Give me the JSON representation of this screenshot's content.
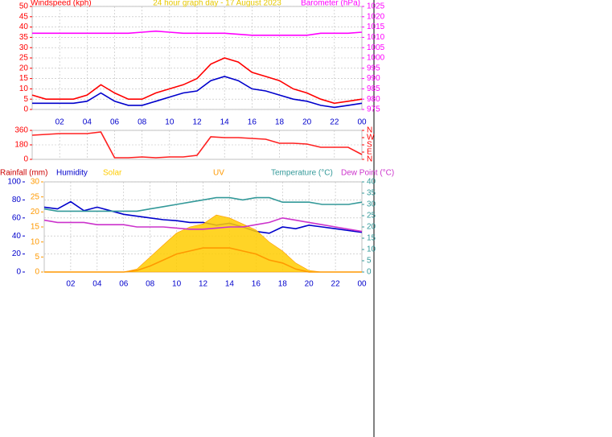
{
  "chart_data": [
    {
      "type": "line",
      "title": "24 hour graph day - 17 August 2023",
      "title_color": "#e6c800",
      "ylabel": "Windspeed (kph)",
      "y2label": "Barometer (hPa)",
      "ycolor": "#ff0000",
      "y2color": "#ff00ff",
      "xcolor": "#0000cc",
      "x": [
        0,
        1,
        2,
        3,
        4,
        5,
        6,
        7,
        8,
        9,
        10,
        11,
        12,
        13,
        14,
        15,
        16,
        17,
        18,
        19,
        20,
        21,
        22,
        23,
        24
      ],
      "xlim": [
        0,
        24
      ],
      "xticks": [
        {
          "value": 2,
          "label": "02"
        },
        {
          "value": 4,
          "label": "04"
        },
        {
          "value": 6,
          "label": "06"
        },
        {
          "value": 8,
          "label": "08"
        },
        10,
        12,
        14,
        16,
        18,
        20,
        22,
        {
          "value": 24,
          "label": "00"
        }
      ],
      "ylim": [
        0,
        50
      ],
      "yticks": [
        0,
        5,
        10,
        15,
        20,
        25,
        30,
        35,
        40,
        45,
        50
      ],
      "y2lim": [
        975,
        1025
      ],
      "y2ticks": [
        975,
        980,
        985,
        990,
        995,
        1000,
        1005,
        1010,
        1015,
        1020,
        1025
      ],
      "grid": true,
      "series": [
        {
          "color": "#ff0000",
          "values": [
            7,
            5,
            5,
            5,
            7,
            12,
            8,
            5,
            5,
            8,
            10,
            12,
            15,
            22,
            25,
            23,
            18,
            16,
            14,
            10,
            8,
            5,
            3,
            4,
            5
          ]
        },
        {
          "color": "#0000cc",
          "values": [
            3,
            3,
            3,
            3,
            4,
            8,
            4,
            2,
            2,
            4,
            6,
            8,
            9,
            14,
            16,
            14,
            10,
            9,
            7,
            5,
            4,
            2,
            1,
            2,
            3
          ]
        },
        {
          "color": "#ff00ff",
          "axis": "y2",
          "values": [
            1012,
            1012,
            1012,
            1012,
            1012,
            1012,
            1012,
            1012,
            1012.5,
            1013,
            1012.5,
            1012,
            1012,
            1012,
            1012,
            1011.5,
            1011,
            1011,
            1011,
            1011,
            1011,
            1012,
            1012,
            1012,
            1012.5
          ]
        }
      ]
    },
    {
      "type": "line",
      "ycolor": "#ff0000",
      "y2color": "#ff0000",
      "x": [
        0,
        1,
        2,
        3,
        4,
        5,
        6,
        7,
        8,
        9,
        10,
        11,
        12,
        13,
        14,
        15,
        16,
        17,
        18,
        19,
        20,
        21,
        22,
        23,
        24
      ],
      "xlim": [
        0,
        24
      ],
      "xticks": [
        {
          "value": 2,
          "label": "02"
        },
        {
          "value": 4,
          "label": "04"
        },
        {
          "value": 6,
          "label": "06"
        },
        {
          "value": 8,
          "label": "08"
        },
        10,
        12,
        14,
        16,
        18,
        20,
        22,
        {
          "value": 24,
          "label": "00"
        }
      ],
      "ylim": [
        0,
        360
      ],
      "yticks": [
        0,
        180,
        360
      ],
      "y2lim": [
        0,
        360
      ],
      "y2ticks": [
        {
          "value": 0,
          "label": "N"
        },
        {
          "value": 90,
          "label": "E"
        },
        {
          "value": 180,
          "label": "S"
        },
        {
          "value": 270,
          "label": "W"
        },
        {
          "value": 360,
          "label": "N"
        }
      ],
      "grid": true,
      "series": [
        {
          "color": "#ff2020",
          "values": [
            300,
            310,
            320,
            320,
            320,
            340,
            20,
            20,
            30,
            20,
            30,
            30,
            50,
            280,
            270,
            270,
            260,
            250,
            200,
            200,
            190,
            150,
            150,
            150,
            60
          ]
        }
      ]
    },
    {
      "type": "line",
      "rainfall_label": "Rainfall (mm)",
      "rainfall_color": "#cc0000",
      "ycolor": "#0000cc",
      "y2color": "#339999",
      "y3color": "#ff9900",
      "xcolor": "#0000cc",
      "x": [
        0,
        1,
        2,
        3,
        4,
        5,
        6,
        7,
        8,
        9,
        10,
        11,
        12,
        13,
        14,
        15,
        16,
        17,
        18,
        19,
        20,
        21,
        22,
        23,
        24
      ],
      "xlim": [
        0,
        24
      ],
      "xticks": [
        {
          "value": 2,
          "label": "02"
        },
        {
          "value": 4,
          "label": "04"
        },
        {
          "value": 6,
          "label": "06"
        },
        {
          "value": 8,
          "label": "08"
        },
        10,
        12,
        14,
        16,
        18,
        20,
        22,
        {
          "value": 24,
          "label": "00"
        }
      ],
      "ylim": [
        0,
        100
      ],
      "yticks": [
        0,
        20,
        40,
        60,
        80,
        100
      ],
      "y3lim": [
        0,
        30
      ],
      "y3ticks": [
        0,
        5,
        10,
        15,
        20,
        25,
        30
      ],
      "y2lim": [
        0,
        40
      ],
      "y2ticks": [
        0,
        5,
        10,
        15,
        20,
        25,
        30,
        35,
        40
      ],
      "grid": true,
      "series": [
        {
          "name": "Humidity",
          "color": "#0000cc",
          "values": [
            72,
            70,
            78,
            68,
            72,
            68,
            64,
            62,
            60,
            58,
            57,
            55,
            55,
            52,
            54,
            50,
            45,
            43,
            50,
            48,
            52,
            50,
            48,
            46,
            44
          ]
        },
        {
          "name": "Solar",
          "color": "#ffcc00",
          "axis": "y3",
          "area": true,
          "values": [
            0,
            0,
            0,
            0,
            0,
            0,
            0,
            1,
            5,
            9,
            13,
            15,
            16,
            19,
            18,
            16,
            14,
            10,
            7,
            3,
            0.5,
            0,
            0,
            0,
            0
          ]
        },
        {
          "name": "UV",
          "color": "#ff9900",
          "axis": "y3",
          "values": [
            0,
            0,
            0,
            0,
            0,
            0,
            0,
            0.5,
            2,
            4,
            6,
            7,
            8,
            8,
            8,
            7,
            6,
            4,
            3,
            1,
            0,
            0,
            0,
            0,
            0
          ]
        },
        {
          "name": "Temperature (°C)",
          "color": "#339999",
          "axis": "y2",
          "values": [
            28,
            27,
            27,
            27,
            27,
            27,
            27,
            27,
            28,
            29,
            30,
            31,
            32,
            33,
            33,
            32,
            33,
            33,
            31,
            31,
            31,
            30,
            30,
            30,
            31
          ]
        },
        {
          "name": "Dew Point (°C)",
          "color": "#cc33cc",
          "axis": "y2",
          "values": [
            23,
            22,
            22,
            22,
            21,
            21,
            21,
            20,
            20,
            20,
            19.5,
            19,
            19,
            19.5,
            20,
            20,
            21,
            22,
            24,
            23,
            22,
            21,
            20,
            19,
            18
          ]
        }
      ]
    }
  ]
}
